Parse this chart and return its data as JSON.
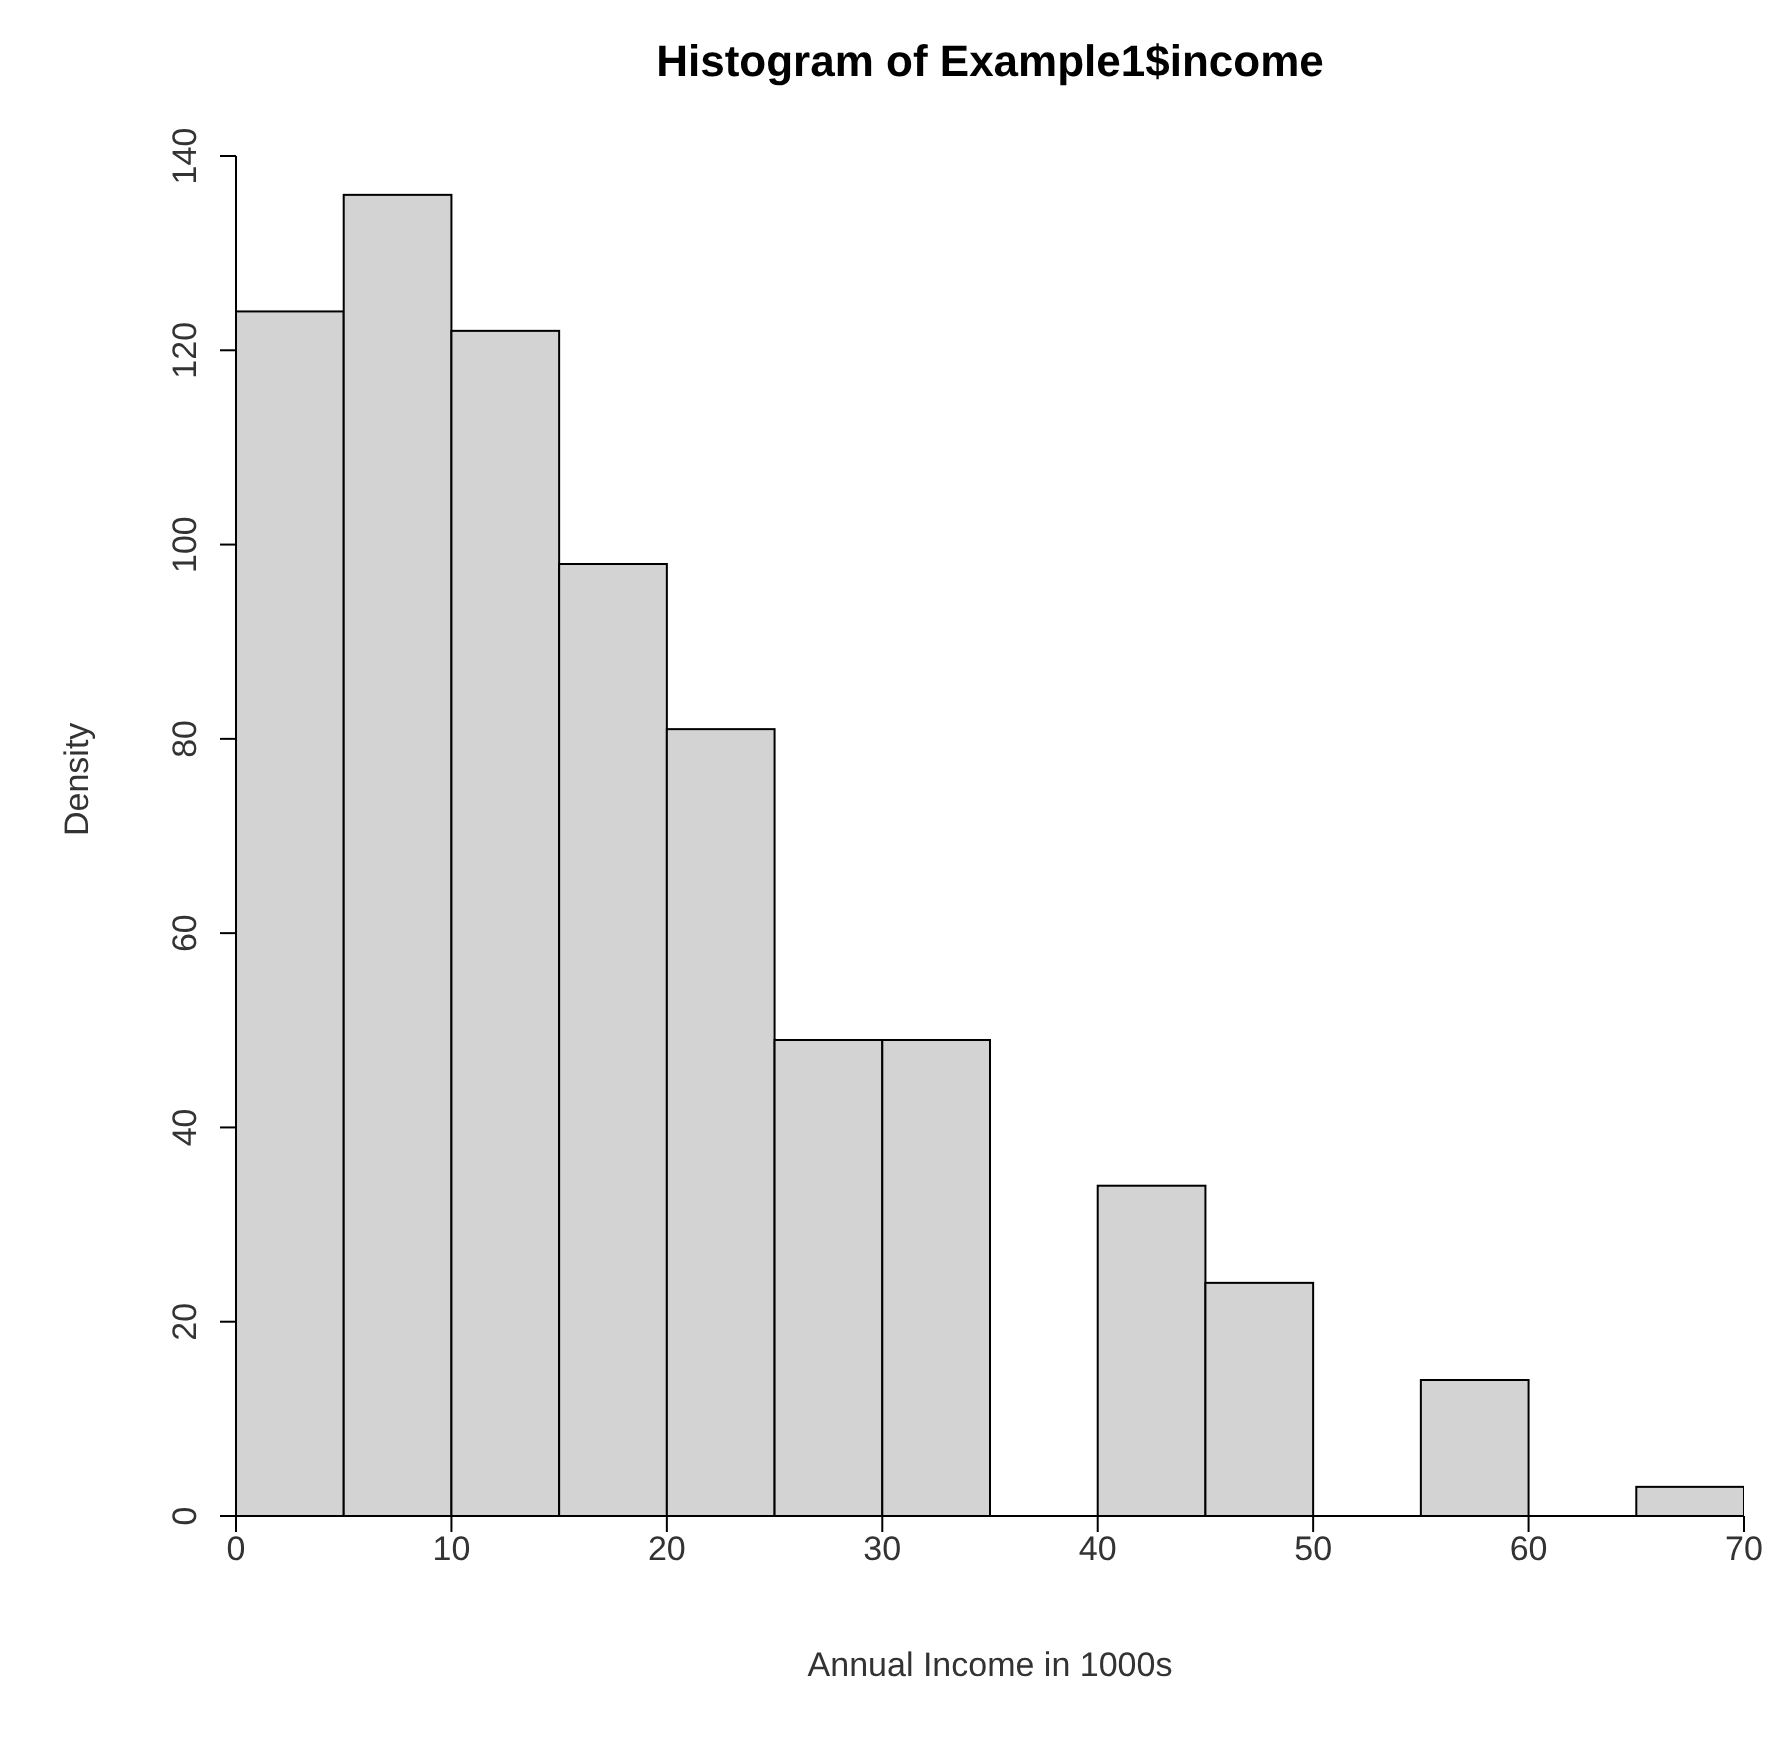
{
  "chart_data": {
    "type": "histogram",
    "title": "Histogram of Example1$income",
    "xlabel": "Annual Income in 1000s",
    "ylabel": "Density",
    "bins": [
      0,
      5,
      10,
      15,
      20,
      25,
      30,
      35,
      40,
      45,
      50,
      55,
      60,
      65,
      70
    ],
    "values": [
      124,
      136,
      122,
      98,
      81,
      49,
      49,
      0,
      34,
      24,
      0,
      14,
      0,
      3
    ],
    "color": "#d3d3d3",
    "xlim": [
      0,
      70
    ],
    "xticks": [
      0,
      10,
      20,
      30,
      40,
      50,
      60,
      70
    ],
    "ylim": [
      0,
      140
    ],
    "yticks": [
      0,
      20,
      40,
      60,
      80,
      100,
      120,
      140
    ],
    "grid": false,
    "legend": false
  }
}
